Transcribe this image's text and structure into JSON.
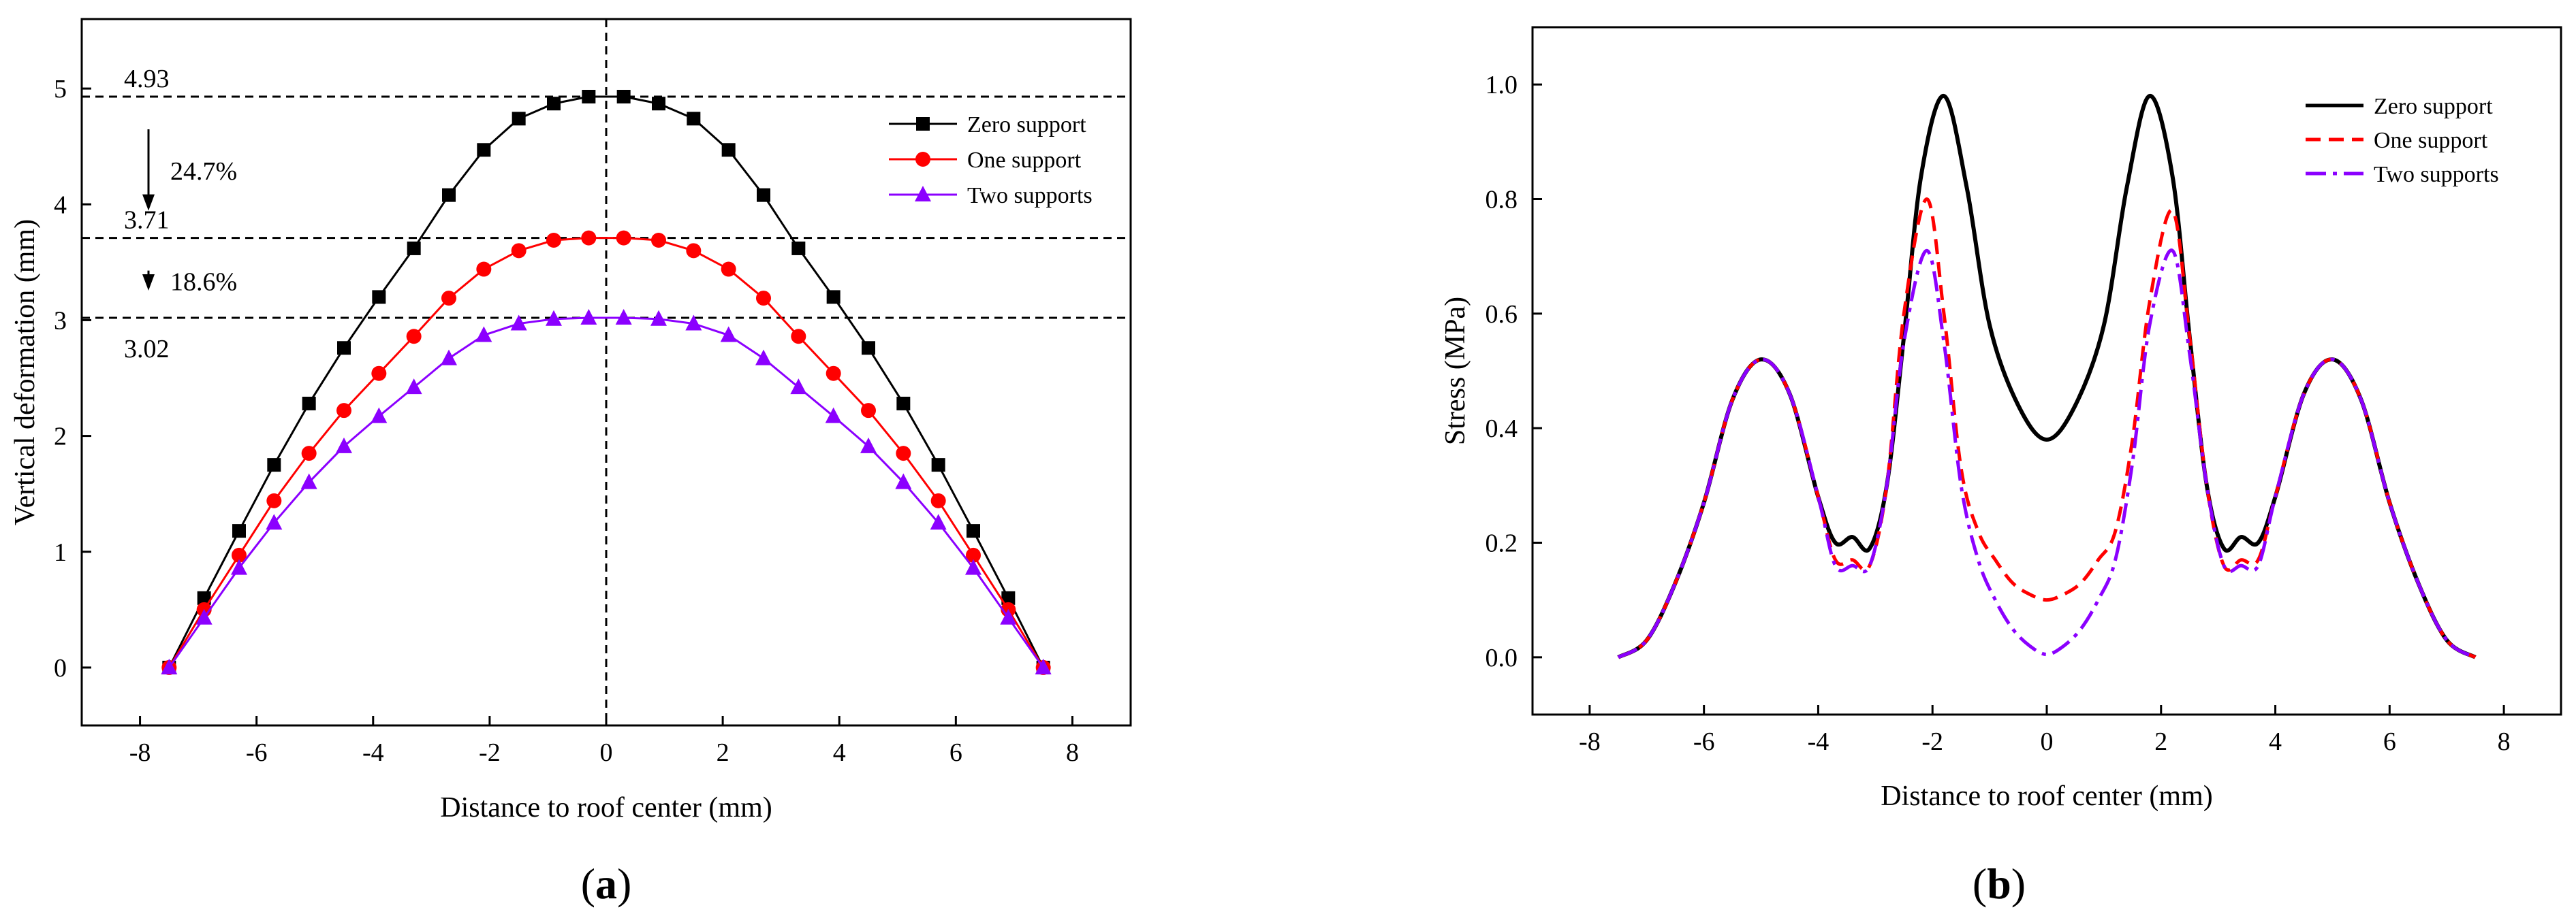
{
  "chart_data": [
    {
      "type": "line",
      "panel_label": "(a)",
      "panel_letter": "a",
      "xlabel": "Distance to roof center (mm)",
      "ylabel": "Vertical deformation (mm)",
      "xlim": [
        -9,
        9
      ],
      "ylim": [
        -0.5,
        5.6
      ],
      "xticks": [
        -8,
        -6,
        -4,
        -2,
        0,
        2,
        4,
        6,
        8
      ],
      "yticks": [
        0,
        1,
        2,
        3,
        4,
        5
      ],
      "legend_position": "top-right",
      "series": [
        {
          "name": "Zero support",
          "color": "#000000",
          "marker": "square",
          "x": [
            -7.5,
            -6.9,
            -6.3,
            -5.7,
            -5.1,
            -4.5,
            -3.9,
            -3.3,
            -2.7,
            -2.1,
            -1.5,
            -0.9,
            -0.3,
            0.3,
            0.9,
            1.5,
            2.1,
            2.7,
            3.3,
            3.9,
            4.5,
            5.1,
            5.7,
            6.3,
            6.9,
            7.5
          ],
          "y": [
            0,
            0.6,
            1.18,
            1.75,
            2.28,
            2.76,
            3.2,
            3.62,
            4.08,
            4.47,
            4.74,
            4.87,
            4.93,
            4.93,
            4.87,
            4.74,
            4.47,
            4.08,
            3.62,
            3.2,
            2.76,
            2.28,
            1.75,
            1.18,
            0.6,
            0
          ]
        },
        {
          "name": "One  support",
          "color": "#ff0000",
          "marker": "circle",
          "x": [
            -7.5,
            -6.9,
            -6.3,
            -5.7,
            -5.1,
            -4.5,
            -3.9,
            -3.3,
            -2.7,
            -2.1,
            -1.5,
            -0.9,
            -0.3,
            0.3,
            0.9,
            1.5,
            2.1,
            2.7,
            3.3,
            3.9,
            4.5,
            5.1,
            5.7,
            6.3,
            6.9,
            7.5
          ],
          "y": [
            0,
            0.5,
            0.97,
            1.44,
            1.85,
            2.22,
            2.54,
            2.86,
            3.19,
            3.44,
            3.6,
            3.69,
            3.71,
            3.71,
            3.69,
            3.6,
            3.44,
            3.19,
            2.86,
            2.54,
            2.22,
            1.85,
            1.44,
            0.97,
            0.5,
            0
          ]
        },
        {
          "name": "Two supports",
          "color": "#8b00ff",
          "marker": "triangle",
          "x": [
            -7.5,
            -6.9,
            -6.3,
            -5.7,
            -5.1,
            -4.5,
            -3.9,
            -3.3,
            -2.7,
            -2.1,
            -1.5,
            -0.9,
            -0.3,
            0.3,
            0.9,
            1.5,
            2.1,
            2.7,
            3.3,
            3.9,
            4.5,
            5.1,
            5.7,
            6.3,
            6.9,
            7.5
          ],
          "y": [
            0,
            0.43,
            0.86,
            1.25,
            1.6,
            1.91,
            2.17,
            2.42,
            2.67,
            2.87,
            2.97,
            3.01,
            3.02,
            3.02,
            3.01,
            2.97,
            2.87,
            2.67,
            2.42,
            2.17,
            1.91,
            1.6,
            1.25,
            0.86,
            0.43,
            0
          ]
        }
      ],
      "reference_lines": [
        {
          "axis": "y",
          "value": 4.93,
          "label": "4.93"
        },
        {
          "axis": "y",
          "value": 3.71,
          "label": "3.71"
        },
        {
          "axis": "y",
          "value": 3.02,
          "label": "3.02"
        },
        {
          "axis": "x",
          "value": 0
        }
      ],
      "annotations": [
        {
          "text": "24.7%",
          "from": 4.93,
          "to": 3.71
        },
        {
          "text": "18.6%",
          "from": 3.71,
          "to": 3.02
        }
      ]
    },
    {
      "type": "line",
      "panel_label": "(b)",
      "panel_letter": "b",
      "xlabel": "Distance to roof center (mm)",
      "ylabel": "Stress (MPa)",
      "xlim": [
        -9,
        9
      ],
      "ylim": [
        -0.1,
        1.1
      ],
      "xticks": [
        -8,
        -6,
        -4,
        -2,
        0,
        2,
        4,
        6,
        8
      ],
      "yticks": [
        0.0,
        0.2,
        0.4,
        0.6,
        0.8,
        1.0
      ],
      "ytick_labels": [
        "0.0",
        "0.2",
        "0.4",
        "0.6",
        "0.8",
        "1.0"
      ],
      "legend_position": "top-right",
      "series": [
        {
          "name": "Zero support",
          "color": "#000000",
          "dash": "solid",
          "x": [
            -7.5,
            -7.0,
            -6.5,
            -6.0,
            -5.5,
            -5.0,
            -4.5,
            -4.0,
            -3.7,
            -3.4,
            -3.1,
            -2.8,
            -2.5,
            -2.2,
            -1.8,
            -1.4,
            -1.0,
            -0.5,
            0,
            0.5,
            1.0,
            1.4,
            1.8,
            2.2,
            2.5,
            2.8,
            3.1,
            3.4,
            3.7,
            4.0,
            4.5,
            5.0,
            5.5,
            6.0,
            6.5,
            7.0,
            7.5
          ],
          "y": [
            0.0,
            0.03,
            0.13,
            0.27,
            0.45,
            0.52,
            0.46,
            0.28,
            0.2,
            0.21,
            0.19,
            0.3,
            0.56,
            0.84,
            0.98,
            0.82,
            0.58,
            0.44,
            0.38,
            0.44,
            0.58,
            0.82,
            0.98,
            0.84,
            0.56,
            0.3,
            0.19,
            0.21,
            0.2,
            0.28,
            0.46,
            0.52,
            0.45,
            0.27,
            0.13,
            0.03,
            0.0
          ]
        },
        {
          "name": "One support",
          "color": "#ff0000",
          "dash": "dashed",
          "x": [
            -7.5,
            -7.0,
            -6.5,
            -6.0,
            -5.5,
            -5.0,
            -4.5,
            -4.0,
            -3.7,
            -3.4,
            -3.1,
            -2.8,
            -2.5,
            -2.1,
            -1.8,
            -1.5,
            -1.2,
            -0.9,
            -0.6,
            -0.3,
            0,
            0.3,
            0.6,
            0.9,
            1.2,
            1.5,
            1.8,
            2.2,
            2.5,
            2.8,
            3.1,
            3.4,
            3.7,
            4.0,
            4.5,
            5.0,
            5.5,
            6.0,
            6.5,
            7.0,
            7.5
          ],
          "y": [
            0.0,
            0.03,
            0.13,
            0.27,
            0.45,
            0.52,
            0.46,
            0.28,
            0.17,
            0.17,
            0.16,
            0.3,
            0.6,
            0.8,
            0.6,
            0.33,
            0.22,
            0.17,
            0.13,
            0.11,
            0.1,
            0.11,
            0.13,
            0.17,
            0.22,
            0.38,
            0.62,
            0.78,
            0.56,
            0.3,
            0.16,
            0.17,
            0.17,
            0.28,
            0.46,
            0.52,
            0.45,
            0.27,
            0.13,
            0.03,
            0.0
          ]
        },
        {
          "name": "Two supports",
          "color": "#8b00ff",
          "dash": "dash-dot",
          "x": [
            -7.5,
            -7.0,
            -6.5,
            -6.0,
            -5.5,
            -5.0,
            -4.5,
            -4.0,
            -3.7,
            -3.4,
            -3.1,
            -2.8,
            -2.5,
            -2.1,
            -1.8,
            -1.5,
            -1.2,
            -0.9,
            -0.6,
            -0.3,
            0,
            0.3,
            0.6,
            0.9,
            1.2,
            1.5,
            1.8,
            2.2,
            2.5,
            2.8,
            3.1,
            3.4,
            3.7,
            4.0,
            4.5,
            5.0,
            5.5,
            6.0,
            6.5,
            7.0,
            7.5
          ],
          "y": [
            0.0,
            0.03,
            0.13,
            0.27,
            0.45,
            0.52,
            0.46,
            0.28,
            0.16,
            0.16,
            0.16,
            0.3,
            0.55,
            0.71,
            0.55,
            0.3,
            0.17,
            0.1,
            0.05,
            0.02,
            0.005,
            0.02,
            0.05,
            0.1,
            0.17,
            0.34,
            0.58,
            0.71,
            0.53,
            0.3,
            0.16,
            0.16,
            0.16,
            0.28,
            0.46,
            0.52,
            0.45,
            0.27,
            0.13,
            0.03,
            0.0
          ]
        }
      ]
    }
  ]
}
